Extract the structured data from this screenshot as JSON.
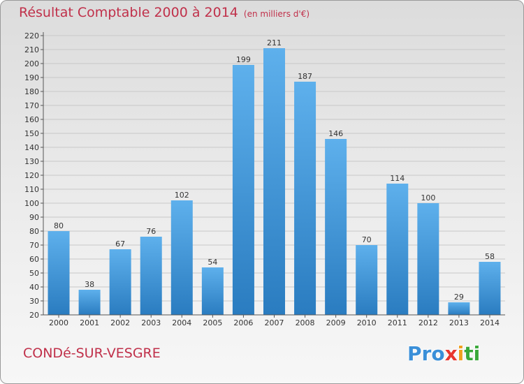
{
  "header": {
    "title": "Résultat Comptable 2000 à 2014",
    "unit": "(en milliers d'€)"
  },
  "footer": {
    "place": "CONDé-SUR-VESGRE",
    "logo_letters": [
      {
        "ch": "P",
        "color": "#3a8fd8"
      },
      {
        "ch": "r",
        "color": "#3a8fd8"
      },
      {
        "ch": "o",
        "color": "#3a8fd8"
      },
      {
        "ch": "x",
        "color": "#e8362e"
      },
      {
        "ch": "i",
        "color": "#f0a020"
      },
      {
        "ch": "t",
        "color": "#3aa83a"
      },
      {
        "ch": "i",
        "color": "#3aa83a"
      }
    ]
  },
  "colors": {
    "bar_light": "#5eb0ec",
    "bar_dark": "#2a7cc0",
    "title": "#c0304a",
    "axis": "#555555",
    "grid": "#c8c8c8"
  },
  "chart_data": {
    "type": "bar",
    "categories": [
      "2000",
      "2001",
      "2002",
      "2003",
      "2004",
      "2005",
      "2006",
      "2007",
      "2008",
      "2009",
      "2010",
      "2011",
      "2012",
      "2013",
      "2014"
    ],
    "values": [
      80,
      38,
      67,
      76,
      102,
      54,
      199,
      211,
      187,
      146,
      70,
      114,
      100,
      29,
      58
    ],
    "title": "Résultat Comptable 2000 à 2014",
    "xlabel": "",
    "ylabel": "",
    "ylim": [
      20,
      220
    ],
    "ytick_step": 10,
    "grid": true
  }
}
